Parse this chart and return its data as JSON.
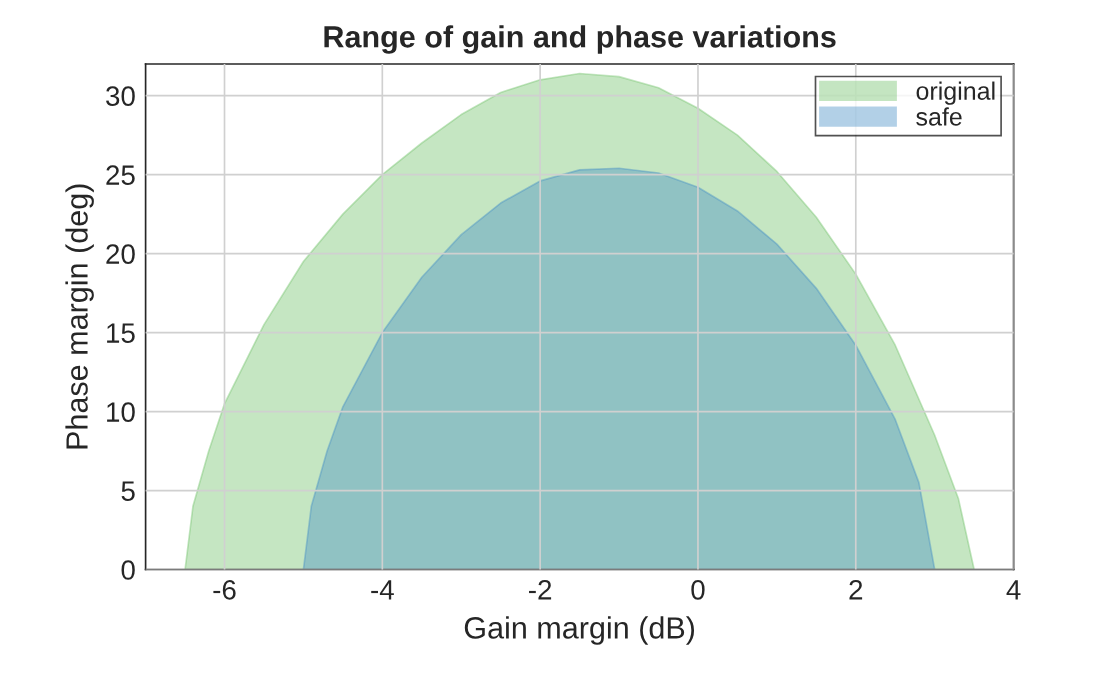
{
  "chart_data": {
    "type": "area",
    "title": "Range of gain and phase variations",
    "xlabel": "Gain margin (dB)",
    "ylabel": "Phase margin (deg)",
    "xlim": [
      -7,
      4
    ],
    "xticks": [
      -6,
      -4,
      -2,
      0,
      2,
      4
    ],
    "ylim": [
      0,
      32
    ],
    "yticks": [
      0,
      5,
      10,
      15,
      20,
      25,
      30
    ],
    "grid": true,
    "legend": "top right",
    "series": [
      {
        "name": "original",
        "color": "#6dc066",
        "x": [
          -6.5,
          -6.4,
          -6.2,
          -6,
          -5.5,
          -5,
          -4.5,
          -4,
          -3.5,
          -3,
          -2.5,
          -2,
          -1.5,
          -1,
          -0.5,
          0,
          0.5,
          1,
          1.5,
          2,
          2.5,
          3,
          3.3,
          3.5
        ],
        "values": [
          0,
          4,
          7.5,
          10.5,
          15.5,
          19.5,
          22.5,
          25,
          27,
          28.8,
          30.2,
          31,
          31.4,
          31.2,
          30.5,
          29.2,
          27.5,
          25.2,
          22.3,
          18.7,
          14.2,
          8.5,
          4.5,
          0
        ]
      },
      {
        "name": "safe",
        "color": "#418cc5",
        "x": [
          -5,
          -4.9,
          -4.7,
          -4.5,
          -4,
          -3.5,
          -3,
          -2.5,
          -2,
          -1.5,
          -1,
          -0.5,
          0,
          0.5,
          1,
          1.5,
          2,
          2.5,
          2.8,
          3
        ],
        "values": [
          0,
          4,
          7.5,
          10.3,
          15,
          18.5,
          21.2,
          23.2,
          24.6,
          25.3,
          25.4,
          25.1,
          24.2,
          22.7,
          20.6,
          17.8,
          14.2,
          9.5,
          5.5,
          0
        ]
      }
    ]
  }
}
